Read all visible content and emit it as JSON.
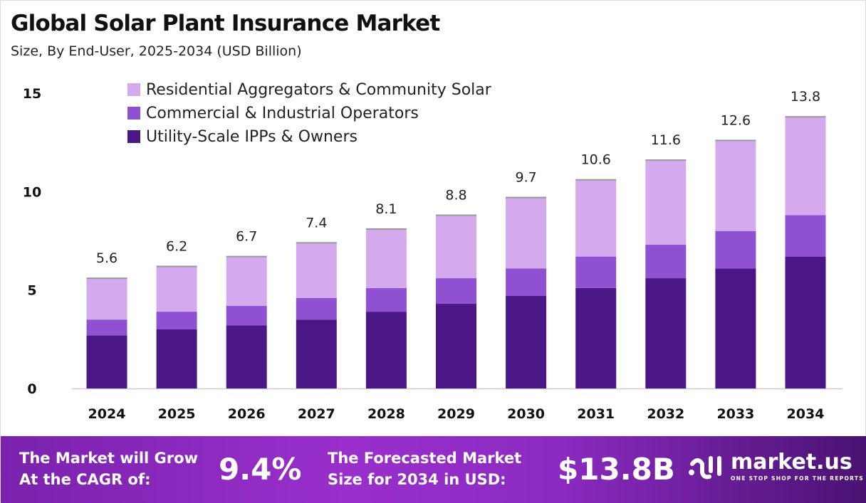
{
  "chart_data": {
    "type": "stacked-bar",
    "title": "Global Solar Plant Insurance Market",
    "subtitle": "Size, By End-User, 2025-2034 (USD Billion)",
    "categories": [
      "2024",
      "2025",
      "2026",
      "2027",
      "2028",
      "2029",
      "2030",
      "2031",
      "2032",
      "2033",
      "2034"
    ],
    "series": [
      {
        "name": "Utility-Scale IPPs & Owners",
        "color": "#4b1685",
        "values": [
          2.7,
          3.0,
          3.2,
          3.5,
          3.9,
          4.3,
          4.7,
          5.1,
          5.6,
          6.1,
          6.7
        ]
      },
      {
        "name": "Commercial & Industrial Operators",
        "color": "#9050d2",
        "values": [
          0.8,
          0.9,
          1.0,
          1.1,
          1.2,
          1.3,
          1.4,
          1.6,
          1.7,
          1.9,
          2.1
        ]
      },
      {
        "name": "Residential Aggregators & Community Solar",
        "color": "#d5a9ee",
        "values": [
          2.1,
          2.3,
          2.5,
          2.8,
          3.0,
          3.2,
          3.6,
          3.9,
          4.3,
          4.6,
          5.0
        ]
      }
    ],
    "totals": [
      "5.6",
      "6.2",
      "6.7",
      "7.4",
      "8.1",
      "8.8",
      "9.7",
      "10.6",
      "11.6",
      "12.6",
      "13.8"
    ],
    "ylim": [
      0,
      15
    ],
    "yticks": [
      "0",
      "5",
      "10",
      "15"
    ],
    "grid": false,
    "legend": "top-left"
  },
  "footer": {
    "cagr_label_1": "The Market will Grow",
    "cagr_label_2": "At the CAGR of:",
    "cagr_value": "9.4%",
    "forecast_label_1": "The Forecasted Market",
    "forecast_label_2": "Size for 2034 in USD:",
    "forecast_value": "$13.8B",
    "logo_text": "market.us",
    "logo_tagline": "ONE STOP SHOP FOR THE REPORTS"
  }
}
